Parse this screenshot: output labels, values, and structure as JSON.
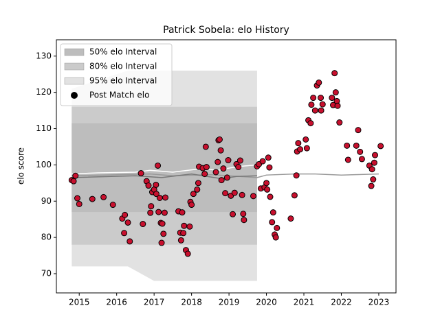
{
  "chart_data": {
    "type": "scatter",
    "title": "Patrick Sobela: elo History",
    "y_label": "elo score",
    "xlim": [
      2014.39,
      2023.46
    ],
    "ylim": [
      64.7,
      134.5
    ],
    "xticks": [
      2015,
      2016,
      2017,
      2018,
      2019,
      2020,
      2021,
      2022,
      2023
    ],
    "yticks": [
      70,
      80,
      90,
      100,
      110,
      120,
      130
    ],
    "legend": "upper left",
    "series": [
      {
        "type": "band",
        "name": "95% elo Interval",
        "color": "#e2e2e2",
        "x": [
          2014.8,
          2016.3,
          2017.0,
          2019.75
        ],
        "upper": [
          121,
          126,
          126,
          126
        ],
        "lower": [
          72,
          72,
          68,
          68
        ]
      },
      {
        "type": "band",
        "name": "80% elo Interval",
        "color": "#cbcbcb",
        "x": [
          2014.8,
          2019.75
        ],
        "upper": [
          116,
          116
        ],
        "lower": [
          78,
          78
        ]
      },
      {
        "type": "band",
        "name": "50% elo Interval",
        "color": "#bdbdbd",
        "x": [
          2014.8,
          2019.75
        ],
        "upper": [
          111.5,
          111.5
        ],
        "lower": [
          87,
          87
        ]
      },
      {
        "type": "line",
        "color": "#ffffff",
        "x": [
          2014.8,
          2015.5,
          2016.5,
          2016.9,
          2017.5,
          2018.3,
          2018.7,
          2019.2,
          2019.75
        ],
        "values": [
          97.5,
          97.8,
          98,
          98.5,
          98,
          99,
          98.5,
          99.5,
          100
        ]
      },
      {
        "type": "line",
        "color": "#999999",
        "x": [
          2014.8,
          2016.9,
          2017.5,
          2018.5,
          2019.0,
          2019.75,
          2020.0,
          2020.75,
          2021.3,
          2022.0,
          2023.0
        ],
        "values": [
          97,
          97.5,
          97,
          97.3,
          97,
          96.5,
          97.2,
          97.5,
          97.5,
          97.2,
          97.5
        ]
      },
      {
        "type": "line",
        "color": "#777777",
        "x": [
          2014.8,
          2016.5,
          2017.2,
          2018.0,
          2018.8,
          2019.2,
          2019.75
        ],
        "values": [
          96.5,
          97,
          96.5,
          97.5,
          96.2,
          96.8,
          97
        ]
      },
      {
        "type": "scatter",
        "name": "Post Match elo",
        "color": "#c8102e",
        "x": [
          2014.8,
          2014.85,
          2014.9,
          2014.95,
          2015.0,
          2015.35,
          2015.65,
          2015.9,
          2016.15,
          2016.2,
          2016.22,
          2016.3,
          2016.35,
          2016.65,
          2016.7,
          2016.8,
          2016.85,
          2016.9,
          2016.92,
          2016.95,
          2017.0,
          2017.05,
          2017.06,
          2017.1,
          2017.12,
          2017.15,
          2017.18,
          2017.2,
          2017.22,
          2017.25,
          2017.28,
          2017.3,
          2017.65,
          2017.7,
          2017.72,
          2017.75,
          2017.78,
          2017.8,
          2017.85,
          2017.9,
          2017.95,
          2017.97,
          2018.0,
          2018.05,
          2018.15,
          2018.18,
          2018.2,
          2018.3,
          2018.35,
          2018.38,
          2018.4,
          2018.65,
          2018.7,
          2018.72,
          2018.75,
          2018.78,
          2018.8,
          2018.85,
          2018.9,
          2018.95,
          2018.98,
          2019.05,
          2019.1,
          2019.15,
          2019.2,
          2019.25,
          2019.3,
          2019.35,
          2019.38,
          2019.4,
          2019.65,
          2019.75,
          2019.8,
          2019.85,
          2019.9,
          2019.95,
          2020.0,
          2020.02,
          2020.05,
          2020.08,
          2020.1,
          2020.15,
          2020.18,
          2020.22,
          2020.25,
          2020.28,
          2020.65,
          2020.75,
          2020.8,
          2020.82,
          2020.85,
          2020.9,
          2021.05,
          2021.08,
          2021.12,
          2021.18,
          2021.2,
          2021.25,
          2021.3,
          2021.35,
          2021.4,
          2021.45,
          2021.46,
          2021.5,
          2021.75,
          2021.78,
          2021.82,
          2021.85,
          2021.88,
          2021.9,
          2021.95,
          2022.15,
          2022.18,
          2022.4,
          2022.45,
          2022.5,
          2022.55,
          2022.75,
          2022.8,
          2022.82,
          2022.85,
          2022.88,
          2022.9,
          2023.05
        ],
        "values": [
          95.8,
          95.5,
          97,
          90.8,
          89.2,
          90.6,
          91.1,
          89,
          85.2,
          81.2,
          86.2,
          84.1,
          78.9,
          97.7,
          83.7,
          95.5,
          94.3,
          86.8,
          88.6,
          92.5,
          93.2,
          94.5,
          92,
          99.8,
          87,
          90.9,
          84,
          78.5,
          83.8,
          81,
          86.8,
          91,
          87.2,
          81.3,
          79.2,
          86.9,
          81.2,
          83.2,
          76.5,
          75.5,
          83,
          89.8,
          89,
          92,
          93.2,
          95,
          99.5,
          99.1,
          97.5,
          105,
          99.4,
          98,
          100.8,
          106.8,
          107,
          104,
          95.8,
          99,
          92.2,
          96.5,
          101.3,
          91.5,
          86.4,
          92.3,
          100.2,
          99.4,
          101.2,
          91.7,
          86.5,
          84.8,
          91.4,
          99.6,
          100.2,
          93.5,
          101,
          93.8,
          95,
          93.2,
          102,
          99.3,
          91.2,
          84.2,
          86.9,
          80.8,
          80,
          82.6,
          85.2,
          91.6,
          97.1,
          103.7,
          106,
          104.3,
          107,
          104.6,
          112.3,
          111.5,
          116.6,
          118.5,
          115,
          121.9,
          122.7,
          118.5,
          115,
          116.7,
          118.5,
          116.5,
          125.3,
          120,
          117.6,
          116.3,
          111.7,
          105.3,
          101.4,
          105.3,
          109.6,
          103.6,
          101.6,
          99.8,
          94.2,
          98.8,
          96,
          100.6,
          102.7,
          105.2
        ]
      }
    ]
  }
}
